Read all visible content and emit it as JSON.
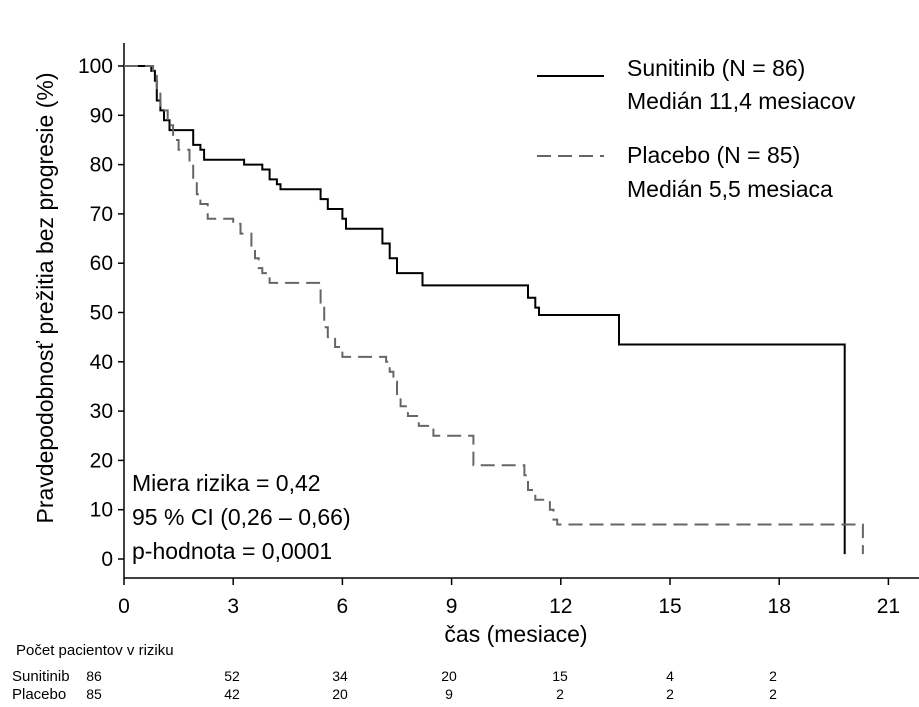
{
  "chart_data": {
    "type": "line",
    "subtype": "kaplan-meier step curve",
    "xlabel": "čas (mesiace)",
    "ylabel": "Pravdepodobnosť prežitia bez progresie (%)",
    "xlim": [
      0,
      21
    ],
    "ylim": [
      0,
      100
    ],
    "xticks": [
      0,
      3,
      6,
      9,
      12,
      15,
      18,
      21
    ],
    "yticks": [
      0,
      10,
      20,
      30,
      40,
      50,
      60,
      70,
      80,
      90,
      100
    ],
    "grid": false,
    "legend_position": "top-right",
    "series": [
      {
        "name": "Sunitinib (N = 86)",
        "median_label": "Medián 11,4 mesiacov",
        "style": "solid",
        "color": "#000000",
        "points": [
          [
            0,
            100
          ],
          [
            0.75,
            100
          ],
          [
            0.75,
            99
          ],
          [
            0.85,
            99
          ],
          [
            0.85,
            97
          ],
          [
            0.9,
            97
          ],
          [
            0.9,
            93
          ],
          [
            1.0,
            93
          ],
          [
            1.0,
            91
          ],
          [
            1.1,
            91
          ],
          [
            1.1,
            89
          ],
          [
            1.25,
            89
          ],
          [
            1.25,
            87
          ],
          [
            1.9,
            87
          ],
          [
            1.9,
            84
          ],
          [
            2.1,
            84
          ],
          [
            2.1,
            83
          ],
          [
            2.2,
            83
          ],
          [
            2.2,
            81
          ],
          [
            3.3,
            81
          ],
          [
            3.3,
            80
          ],
          [
            3.8,
            80
          ],
          [
            3.8,
            79
          ],
          [
            4.0,
            79
          ],
          [
            4.0,
            77
          ],
          [
            4.2,
            77
          ],
          [
            4.2,
            76
          ],
          [
            4.3,
            76
          ],
          [
            4.3,
            75
          ],
          [
            5.4,
            75
          ],
          [
            5.4,
            73
          ],
          [
            5.6,
            73
          ],
          [
            5.6,
            71
          ],
          [
            6.0,
            71
          ],
          [
            6.0,
            69
          ],
          [
            6.1,
            69
          ],
          [
            6.1,
            67
          ],
          [
            7.1,
            67
          ],
          [
            7.1,
            64
          ],
          [
            7.3,
            64
          ],
          [
            7.3,
            61
          ],
          [
            7.5,
            61
          ],
          [
            7.5,
            58
          ],
          [
            8.2,
            58
          ],
          [
            8.2,
            55.5
          ],
          [
            11.1,
            55.5
          ],
          [
            11.1,
            53
          ],
          [
            11.3,
            53
          ],
          [
            11.3,
            51
          ],
          [
            11.4,
            51
          ],
          [
            11.4,
            49.5
          ],
          [
            13.6,
            49.5
          ],
          [
            13.6,
            43.5
          ],
          [
            19.8,
            43.5
          ],
          [
            19.8,
            1
          ]
        ]
      },
      {
        "name": "Placebo (N = 85)",
        "median_label": "Medián 5,5 mesiaca",
        "style": "dashed",
        "color": "#666666",
        "points": [
          [
            0,
            100
          ],
          [
            0.8,
            100
          ],
          [
            0.8,
            98
          ],
          [
            0.9,
            98
          ],
          [
            0.9,
            95
          ],
          [
            1.0,
            95
          ],
          [
            1.0,
            91
          ],
          [
            1.2,
            91
          ],
          [
            1.2,
            88
          ],
          [
            1.35,
            88
          ],
          [
            1.35,
            85
          ],
          [
            1.5,
            85
          ],
          [
            1.5,
            83
          ],
          [
            1.8,
            83
          ],
          [
            1.8,
            80
          ],
          [
            1.9,
            80
          ],
          [
            1.9,
            77
          ],
          [
            2.0,
            77
          ],
          [
            2.0,
            74
          ],
          [
            2.1,
            74
          ],
          [
            2.1,
            72
          ],
          [
            2.3,
            72
          ],
          [
            2.3,
            69
          ],
          [
            3.0,
            69
          ],
          [
            3.0,
            68
          ],
          [
            3.2,
            68
          ],
          [
            3.2,
            66
          ],
          [
            3.5,
            66
          ],
          [
            3.5,
            63
          ],
          [
            3.6,
            63
          ],
          [
            3.6,
            61
          ],
          [
            3.7,
            61
          ],
          [
            3.7,
            59
          ],
          [
            3.8,
            59
          ],
          [
            3.8,
            58
          ],
          [
            4.0,
            58
          ],
          [
            4.0,
            56
          ],
          [
            5.4,
            56
          ],
          [
            5.4,
            52
          ],
          [
            5.5,
            52
          ],
          [
            5.5,
            47
          ],
          [
            5.6,
            47
          ],
          [
            5.6,
            45
          ],
          [
            5.8,
            45
          ],
          [
            5.8,
            43
          ],
          [
            6.0,
            43
          ],
          [
            6.0,
            41
          ],
          [
            7.2,
            41
          ],
          [
            7.2,
            40
          ],
          [
            7.3,
            40
          ],
          [
            7.3,
            38
          ],
          [
            7.4,
            38
          ],
          [
            7.4,
            36
          ],
          [
            7.5,
            36
          ],
          [
            7.5,
            33
          ],
          [
            7.6,
            33
          ],
          [
            7.6,
            31
          ],
          [
            7.8,
            31
          ],
          [
            7.8,
            29
          ],
          [
            8.1,
            29
          ],
          [
            8.1,
            27
          ],
          [
            8.5,
            27
          ],
          [
            8.5,
            25
          ],
          [
            9.6,
            25
          ],
          [
            9.6,
            19
          ],
          [
            11.0,
            19
          ],
          [
            11.0,
            17
          ],
          [
            11.1,
            17
          ],
          [
            11.1,
            14
          ],
          [
            11.3,
            14
          ],
          [
            11.3,
            12
          ],
          [
            11.7,
            12
          ],
          [
            11.7,
            10
          ],
          [
            11.8,
            10
          ],
          [
            11.8,
            8
          ],
          [
            11.9,
            8
          ],
          [
            11.9,
            7
          ],
          [
            20.3,
            7
          ],
          [
            20.3,
            1
          ]
        ]
      }
    ],
    "annotations": [
      "Miera rizika = 0,42",
      "95 % CI (0,26 – 0,66)",
      "p-hodnota = 0,0001"
    ],
    "risk_table": {
      "title": "Počet pacientov v riziku",
      "rows": [
        {
          "label": "Sunitinib",
          "counts": [
            86,
            52,
            34,
            20,
            15,
            4,
            2
          ]
        },
        {
          "label": "Placebo",
          "counts": [
            85,
            42,
            20,
            9,
            2,
            2,
            2
          ]
        }
      ]
    }
  }
}
